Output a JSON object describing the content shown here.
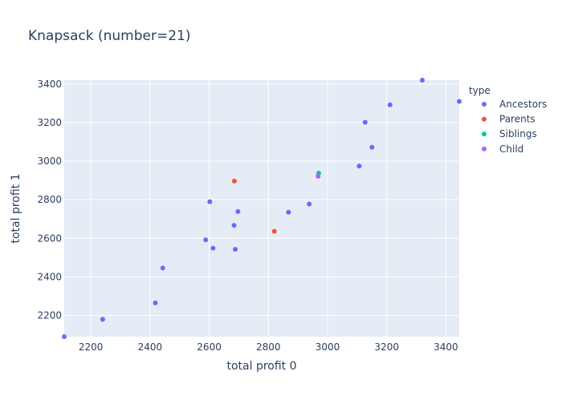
{
  "chart_data": {
    "type": "scatter",
    "title": "Knapsack (number=21)",
    "xlabel": "total profit 0",
    "ylabel": "total profit 1",
    "xlim": [
      2110,
      3445
    ],
    "ylim": [
      2090,
      3420
    ],
    "xticks": [
      2200,
      2400,
      2600,
      2800,
      3000,
      3200,
      3400
    ],
    "yticks": [
      2200,
      2400,
      2600,
      2800,
      3000,
      3200,
      3400
    ],
    "grid": true,
    "legend": {
      "title": "type",
      "placement": "right"
    },
    "series": [
      {
        "name": "Ancestors",
        "color": "#636efa",
        "points": [
          [
            2110,
            2090
          ],
          [
            2240,
            2180
          ],
          [
            2418,
            2265
          ],
          [
            2443,
            2446
          ],
          [
            2588,
            2592
          ],
          [
            2602,
            2790
          ],
          [
            2613,
            2549
          ],
          [
            2684,
            2667
          ],
          [
            2688,
            2543
          ],
          [
            2697,
            2739
          ],
          [
            2868,
            2735
          ],
          [
            2938,
            2778
          ],
          [
            3107,
            2975
          ],
          [
            3127,
            3202
          ],
          [
            3150,
            3072
          ],
          [
            3211,
            3292
          ],
          [
            3320,
            3420
          ],
          [
            3445,
            3310
          ]
        ]
      },
      {
        "name": "Parents",
        "color": "#ef553b",
        "points": [
          [
            2685,
            2897
          ],
          [
            2820,
            2636
          ]
        ]
      },
      {
        "name": "Siblings",
        "color": "#00cc96",
        "points": [
          [
            2970,
            2938
          ]
        ]
      },
      {
        "name": "Child",
        "color": "#ab63fa",
        "points": [
          [
            2968,
            2922
          ]
        ]
      }
    ]
  }
}
